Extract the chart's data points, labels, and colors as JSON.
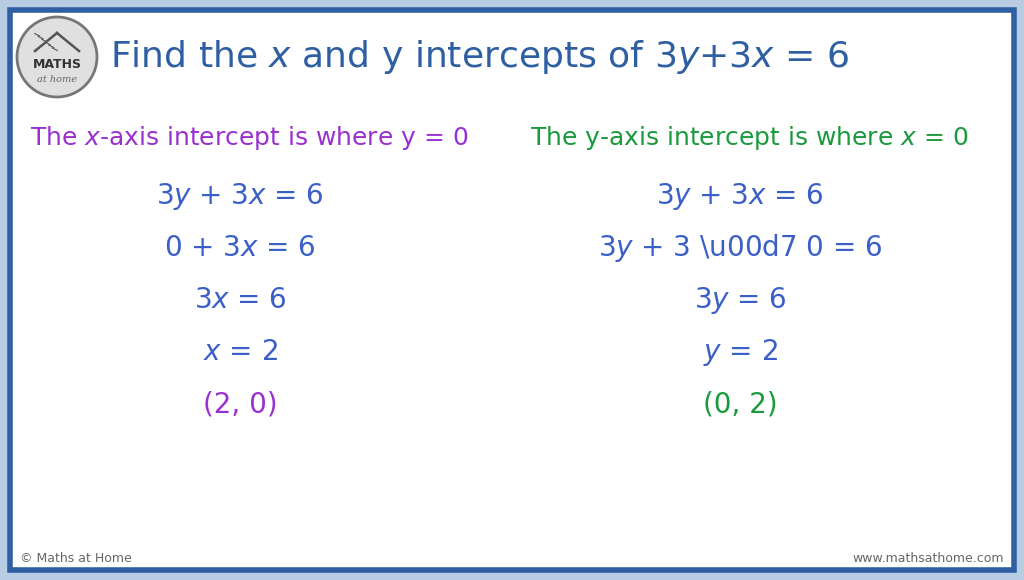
{
  "bg_outer": "#b8cce4",
  "bg_inner": "#ffffff",
  "border_color": "#2e5fa3",
  "title_color": "#2e5fa3",
  "purple_color": "#9b30d0",
  "green_color": "#1a9a3c",
  "blue_color": "#3a5fc8",
  "footer_left": "© Maths at Home",
  "footer_right": "www.mathsathome.com",
  "figsize": [
    10.24,
    5.8
  ],
  "dpi": 100
}
